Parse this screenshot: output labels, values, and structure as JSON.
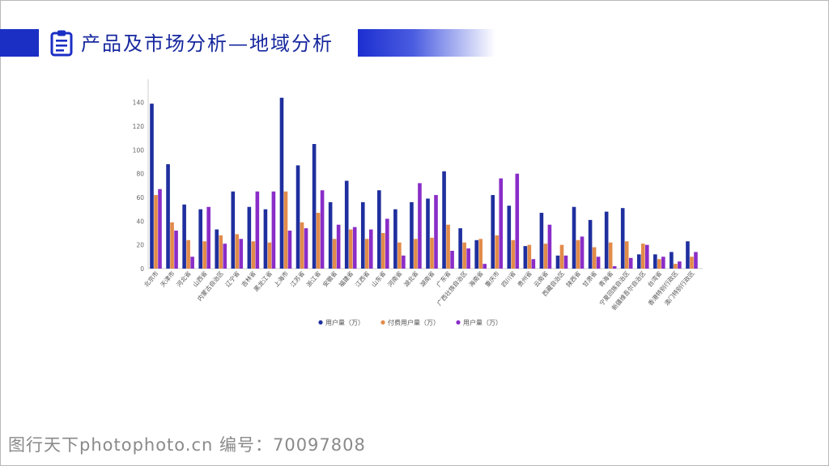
{
  "title": "产品及市场分析—地域分析",
  "watermark": "图行天下photophoto.cn 编号：70097808",
  "colors": {
    "header_blue": "#1b2fc4",
    "title_text": "#17289e",
    "series1": "#1f2f9e",
    "series2": "#e28b4a",
    "series3": "#8a2dc8"
  },
  "chart_data": {
    "type": "bar",
    "categories": [
      "北京市",
      "天津市",
      "河北省",
      "山西省",
      "内蒙古自治区",
      "辽宁省",
      "吉林省",
      "黑龙江省",
      "上海市",
      "江苏省",
      "浙江省",
      "安徽省",
      "福建省",
      "江西省",
      "山东省",
      "河南省",
      "湖北省",
      "湖南省",
      "广东省",
      "广西壮族自治区",
      "海南省",
      "重庆市",
      "四川省",
      "贵州省",
      "云南省",
      "西藏自治区",
      "陕西省",
      "甘肃省",
      "青海省",
      "宁夏回族自治区",
      "新疆维吾尔自治区",
      "台湾省",
      "香港特别行政区",
      "澳门特别行政区"
    ],
    "series": [
      {
        "name": "用户量（万）",
        "color": "#1f2f9e",
        "values": [
          139,
          88,
          54,
          50,
          33,
          65,
          52,
          50,
          144,
          87,
          105,
          56,
          74,
          56,
          66,
          50,
          56,
          59,
          82,
          34,
          24,
          62,
          53,
          19,
          47,
          11,
          52,
          41,
          48,
          51,
          12,
          12,
          14,
          23
        ]
      },
      {
        "name": "付费用户量（万）",
        "color": "#e28b4a",
        "values": [
          62,
          39,
          24,
          23,
          28,
          29,
          23,
          22,
          65,
          39,
          47,
          25,
          33,
          25,
          30,
          22,
          25,
          26,
          37,
          22,
          25,
          28,
          24,
          20,
          21,
          20,
          24,
          18,
          22,
          23,
          21,
          8,
          4,
          10
        ]
      },
      {
        "name": "用户量（万）",
        "color": "#8a2dc8",
        "values": [
          67,
          32,
          10,
          52,
          21,
          25,
          65,
          65,
          32,
          34,
          66,
          37,
          35,
          33,
          42,
          11,
          72,
          62,
          15,
          17,
          4,
          76,
          80,
          8,
          37,
          11,
          27,
          10,
          2,
          9,
          20,
          10,
          6,
          14
        ]
      }
    ],
    "ylim": [
      0,
      150
    ],
    "yticks": [
      0,
      20,
      40,
      60,
      80,
      100,
      120,
      140
    ],
    "legend_position": "bottom-center",
    "grid": false
  }
}
